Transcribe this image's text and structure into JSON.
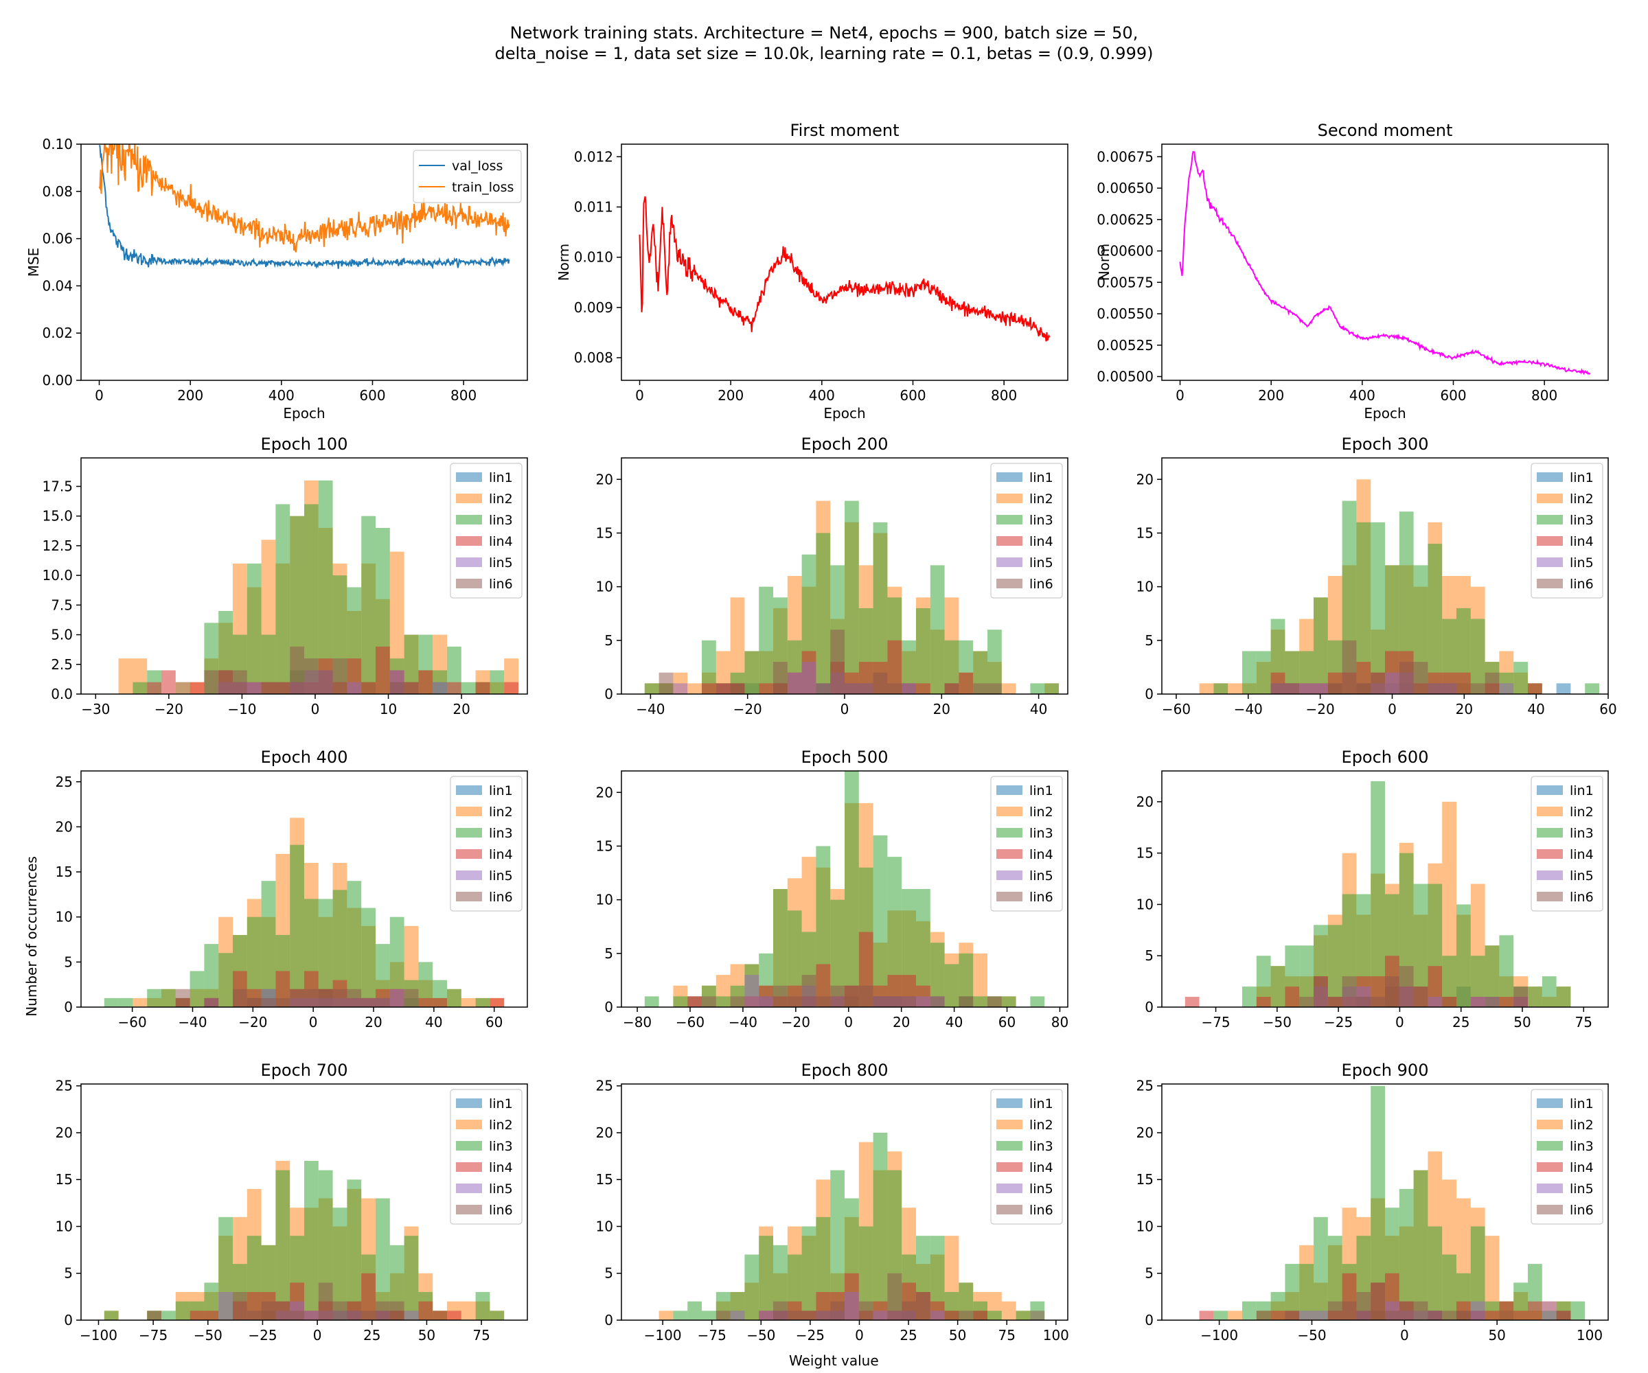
{
  "figure": {
    "title_line1": "Network training stats. Architecture = Net4,  epochs = 900, batch size = 50,",
    "title_line2": "delta_noise = 1, data set size = 10.0k, learning rate = 0.1, betas = (0.9, 0.999)",
    "supylabel": "Number of occurrences",
    "supxlabel": "Weight value"
  },
  "chart_data": [
    {
      "id": "loss",
      "type": "line",
      "title": "",
      "xlabel": "Epoch",
      "ylabel": "MSE",
      "xlim": [
        -40,
        940
      ],
      "ylim": [
        0.0,
        0.1
      ],
      "xticks": [
        0,
        200,
        400,
        600,
        800
      ],
      "yticks": [
        0.0,
        0.02,
        0.04,
        0.06,
        0.08,
        0.1
      ],
      "ytick_labels": [
        "0.00",
        "0.02",
        "0.04",
        "0.06",
        "0.08",
        "0.10"
      ],
      "legend_loc": "upper right",
      "series": [
        {
          "name": "val_loss",
          "color": "#1f77b4",
          "noise": 0.0007,
          "x": [
            0,
            10,
            20,
            30,
            40,
            60,
            80,
            100,
            150,
            200,
            300,
            400,
            500,
            600,
            700,
            800,
            900
          ],
          "y": [
            0.1,
            0.085,
            0.068,
            0.062,
            0.058,
            0.054,
            0.052,
            0.051,
            0.0505,
            0.05,
            0.0498,
            0.0495,
            0.0496,
            0.0498,
            0.0499,
            0.05,
            0.0505
          ]
        },
        {
          "name": "train_loss",
          "color": "#ff7f0e",
          "noise": 0.0025,
          "x": [
            0,
            10,
            20,
            40,
            60,
            100,
            150,
            200,
            250,
            300,
            350,
            400,
            450,
            500,
            600,
            700,
            750,
            800,
            850,
            900
          ],
          "y": [
            0.082,
            0.095,
            0.098,
            0.097,
            0.094,
            0.089,
            0.082,
            0.075,
            0.07,
            0.066,
            0.063,
            0.06,
            0.061,
            0.064,
            0.066,
            0.069,
            0.071,
            0.069,
            0.067,
            0.066
          ]
        }
      ]
    },
    {
      "id": "first-moment",
      "type": "line",
      "title": "First moment",
      "xlabel": "Epoch",
      "ylabel": "Norm",
      "xlim": [
        -40,
        940
      ],
      "ylim": [
        0.00755,
        0.01225
      ],
      "xticks": [
        0,
        200,
        400,
        600,
        800
      ],
      "yticks": [
        0.008,
        0.009,
        0.01,
        0.011,
        0.012
      ],
      "ytick_labels": [
        "0.008",
        "0.009",
        "0.010",
        "0.011",
        "0.012"
      ],
      "series": [
        {
          "name": "",
          "color": "#ff0000",
          "noise": 7e-05,
          "x": [
            0,
            5,
            10,
            20,
            30,
            40,
            50,
            60,
            70,
            80,
            100,
            150,
            200,
            220,
            250,
            280,
            300,
            320,
            350,
            400,
            450,
            500,
            550,
            600,
            620,
            650,
            700,
            750,
            800,
            850,
            880,
            900
          ],
          "y": [
            0.0102,
            0.0088,
            0.0115,
            0.0098,
            0.0107,
            0.0093,
            0.011,
            0.0092,
            0.0109,
            0.0101,
            0.0099,
            0.0094,
            0.009,
            0.0088,
            0.0087,
            0.0096,
            0.0099,
            0.0101,
            0.0097,
            0.0091,
            0.0094,
            0.0093,
            0.0094,
            0.0093,
            0.0095,
            0.0093,
            0.009,
            0.0089,
            0.0088,
            0.0087,
            0.0085,
            0.0084
          ]
        }
      ]
    },
    {
      "id": "second-moment",
      "type": "line",
      "title": "Second moment",
      "xlabel": "Epoch",
      "ylabel": "Norm",
      "xlim": [
        -40,
        940
      ],
      "ylim": [
        0.00497,
        0.00685
      ],
      "xticks": [
        0,
        200,
        400,
        600,
        800
      ],
      "yticks": [
        0.005,
        0.00525,
        0.0055,
        0.00575,
        0.006,
        0.00625,
        0.0065,
        0.00675
      ],
      "ytick_labels": [
        "0.00500",
        "0.00525",
        "0.00550",
        "0.00575",
        "0.00600",
        "0.00625",
        "0.00650",
        "0.00675"
      ],
      "series": [
        {
          "name": "",
          "color": "#ff00ff",
          "noise": 6e-06,
          "x": [
            0,
            5,
            10,
            20,
            30,
            40,
            50,
            60,
            80,
            100,
            120,
            150,
            180,
            200,
            250,
            280,
            300,
            330,
            350,
            400,
            450,
            500,
            550,
            600,
            650,
            700,
            750,
            800,
            850,
            900
          ],
          "y": [
            0.0059,
            0.0058,
            0.0062,
            0.0066,
            0.0068,
            0.0066,
            0.00665,
            0.0064,
            0.0063,
            0.0062,
            0.0061,
            0.0059,
            0.0057,
            0.0056,
            0.0055,
            0.0054,
            0.0055,
            0.00555,
            0.0054,
            0.0053,
            0.00533,
            0.0053,
            0.0052,
            0.00515,
            0.0052,
            0.0051,
            0.00512,
            0.0051,
            0.00505,
            0.00503
          ]
        }
      ]
    },
    {
      "id": "h100",
      "type": "histogram",
      "title": "Epoch 100",
      "spread": 10,
      "xlim": [
        -32,
        29
      ],
      "ylim": [
        0,
        19.9
      ],
      "xticks": [
        -30,
        -20,
        -10,
        0,
        10,
        20
      ],
      "yticks": [
        0.0,
        2.5,
        5.0,
        7.5,
        10.0,
        12.5,
        15.0,
        17.5
      ],
      "ytick_labels": [
        "0.0",
        "2.5",
        "5.0",
        "7.5",
        "10.0",
        "12.5",
        "15.0",
        "17.5"
      ],
      "legend": [
        "lin1",
        "lin2",
        "lin3",
        "lin4",
        "lin5",
        "lin6"
      ],
      "legend_loc": "upper right"
    },
    {
      "id": "h200",
      "type": "histogram",
      "title": "Epoch 200",
      "spread": 15,
      "xlim": [
        -46,
        46
      ],
      "ylim": [
        0,
        22
      ],
      "xticks": [
        -40,
        -20,
        0,
        20,
        40
      ],
      "yticks": [
        0,
        5,
        10,
        15,
        20
      ],
      "legend": [
        "lin1",
        "lin2",
        "lin3",
        "lin4",
        "lin5",
        "lin6"
      ],
      "legend_loc": "upper right"
    },
    {
      "id": "h300",
      "type": "histogram",
      "title": "Epoch 300",
      "spread": 19,
      "xlim": [
        -64,
        60
      ],
      "ylim": [
        0,
        22
      ],
      "xticks": [
        -60,
        -40,
        -20,
        0,
        20,
        40,
        60
      ],
      "yticks": [
        0,
        5,
        10,
        15,
        20
      ],
      "legend": [
        "lin1",
        "lin2",
        "lin3",
        "lin4",
        "lin5",
        "lin6"
      ],
      "legend_loc": "upper right"
    },
    {
      "id": "h400",
      "type": "histogram",
      "title": "Epoch 400",
      "spread": 22,
      "xlim": [
        -77,
        71
      ],
      "ylim": [
        0,
        26.2
      ],
      "xticks": [
        -60,
        -40,
        -20,
        0,
        20,
        40,
        60
      ],
      "yticks": [
        0,
        5,
        10,
        15,
        20,
        25
      ],
      "legend": [
        "lin1",
        "lin2",
        "lin3",
        "lin4",
        "lin5",
        "lin6"
      ],
      "legend_loc": "upper right"
    },
    {
      "id": "h500",
      "type": "histogram",
      "title": "Epoch 500",
      "spread": 25,
      "xlim": [
        -86,
        83
      ],
      "ylim": [
        0,
        22
      ],
      "xticks": [
        -80,
        -60,
        -40,
        -20,
        0,
        20,
        40,
        60,
        80
      ],
      "yticks": [
        0,
        5,
        10,
        15,
        20
      ],
      "legend": [
        "lin1",
        "lin2",
        "lin3",
        "lin4",
        "lin5",
        "lin6"
      ],
      "legend_loc": "upper right"
    },
    {
      "id": "h600",
      "type": "histogram",
      "title": "Epoch 600",
      "spread": 28,
      "xlim": [
        -97,
        85
      ],
      "ylim": [
        0,
        23
      ],
      "xticks": [
        -75,
        -50,
        -25,
        0,
        25,
        50,
        75
      ],
      "yticks": [
        0,
        5,
        10,
        15,
        20
      ],
      "legend": [
        "lin1",
        "lin2",
        "lin3",
        "lin4",
        "lin5",
        "lin6"
      ],
      "legend_loc": "upper right"
    },
    {
      "id": "h700",
      "type": "histogram",
      "title": "Epoch 700",
      "spread": 31,
      "xlim": [
        -108,
        96
      ],
      "ylim": [
        0,
        25.2
      ],
      "xticks": [
        -100,
        -75,
        -50,
        -25,
        0,
        25,
        50,
        75
      ],
      "yticks": [
        0,
        5,
        10,
        15,
        20,
        25
      ],
      "legend": [
        "lin1",
        "lin2",
        "lin3",
        "lin4",
        "lin5",
        "lin6"
      ],
      "legend_loc": "upper right"
    },
    {
      "id": "h800",
      "type": "histogram",
      "title": "Epoch 800",
      "spread": 34,
      "xlim": [
        -121,
        106
      ],
      "ylim": [
        0,
        25.2
      ],
      "xticks": [
        -100,
        -75,
        -50,
        -25,
        0,
        25,
        50,
        75,
        100
      ],
      "yticks": [
        0,
        5,
        10,
        15,
        20,
        25
      ],
      "legend": [
        "lin1",
        "lin2",
        "lin3",
        "lin4",
        "lin5",
        "lin6"
      ],
      "legend_loc": "upper right"
    },
    {
      "id": "h900",
      "type": "histogram",
      "title": "Epoch 900",
      "spread": 37,
      "xlim": [
        -131,
        110
      ],
      "ylim": [
        0,
        25.2
      ],
      "xticks": [
        -100,
        -50,
        0,
        50,
        100
      ],
      "yticks": [
        0,
        5,
        10,
        15,
        20,
        25
      ],
      "legend": [
        "lin1",
        "lin2",
        "lin3",
        "lin4",
        "lin5",
        "lin6"
      ],
      "legend_loc": "upper right"
    }
  ],
  "colors": {
    "lin1": "#1f77b4",
    "lin2": "#ff7f0e",
    "lin3": "#2ca02c",
    "lin4": "#d62728",
    "lin5": "#9467bd",
    "lin6": "#8c564b"
  }
}
